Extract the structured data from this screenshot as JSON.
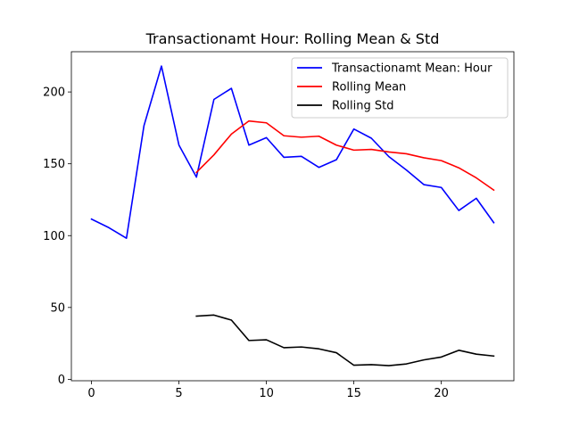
{
  "chart_data": {
    "type": "line",
    "title": "Transactionamt Hour: Rolling Mean & Std",
    "xlabel": "",
    "ylabel": "",
    "xlim": [
      -1.15,
      24.15
    ],
    "ylim": [
      -1,
      228
    ],
    "xticks": [
      0,
      5,
      10,
      15,
      20
    ],
    "yticks": [
      0,
      50,
      100,
      150,
      200
    ],
    "grid": false,
    "legend_position": "top-right",
    "series": [
      {
        "name": "Transactionamt Mean: Hour",
        "color": "#0000ff",
        "x": [
          0,
          1,
          2,
          3,
          4,
          5,
          6,
          7,
          8,
          9,
          10,
          11,
          12,
          13,
          14,
          15,
          16,
          17,
          18,
          19,
          20,
          21,
          22,
          23
        ],
        "y": [
          111.5,
          105.5,
          98.2,
          176.5,
          218.0,
          163.0,
          140.7,
          194.8,
          202.5,
          163.0,
          168.2,
          154.5,
          155.2,
          147.5,
          152.8,
          174.2,
          167.8,
          155.0,
          145.7,
          135.5,
          133.5,
          117.5,
          126.0,
          109.0
        ]
      },
      {
        "name": "Rolling Mean",
        "color": "#ff0000",
        "x": [
          6,
          7,
          8,
          9,
          10,
          11,
          12,
          13,
          14,
          15,
          16,
          17,
          18,
          19,
          20,
          21,
          22,
          23
        ],
        "y": [
          144.0,
          156.2,
          170.7,
          179.8,
          178.5,
          169.5,
          168.5,
          169.2,
          163.0,
          159.5,
          160.0,
          158.2,
          157.0,
          154.2,
          152.2,
          147.2,
          140.2,
          131.7
        ]
      },
      {
        "name": "Rolling Std",
        "color": "#000000",
        "x": [
          6,
          7,
          8,
          9,
          10,
          11,
          12,
          13,
          14,
          15,
          16,
          17,
          18,
          19,
          20,
          21,
          22,
          23
        ],
        "y": [
          44.0,
          44.7,
          41.2,
          27.0,
          27.5,
          22.0,
          22.5,
          21.2,
          18.5,
          9.8,
          10.2,
          9.5,
          10.7,
          13.5,
          15.5,
          20.2,
          17.5,
          16.2
        ]
      }
    ]
  }
}
